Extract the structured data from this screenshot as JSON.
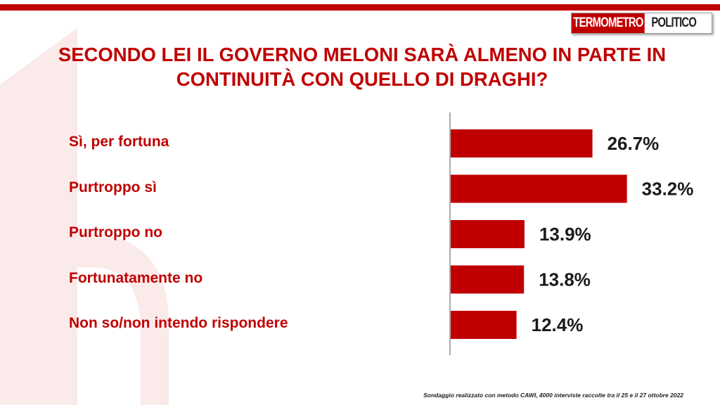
{
  "brand": {
    "logo_part1": "TERMOMETRO",
    "logo_part2": "POLITICO",
    "accent_color": "#c00000"
  },
  "title": "SECONDO LEI IL GOVERNO MELONI SARÀ ALMENO IN PARTE IN CONTINUITÀ CON QUELLO DI DRAGHI?",
  "footnote": "Sondaggio realizzato con metodo CAWI, 4000 interviste raccolte tra il 25 e il 27 ottobre 2022",
  "chart_data": {
    "type": "bar",
    "orientation": "horizontal",
    "categories": [
      "Sì, per fortuna",
      "Purtroppo sì",
      "Purtroppo no",
      "Fortunatamente no",
      "Non so/non intendo rispondere"
    ],
    "values": [
      26.7,
      33.2,
      13.9,
      13.8,
      12.4
    ],
    "value_labels": [
      "26.7%",
      "33.2%",
      "13.9%",
      "13.8%",
      "12.4%"
    ],
    "unit": "%",
    "bar_color": "#c00000",
    "xlim": [
      0,
      40
    ],
    "grid": false,
    "legend": "none"
  }
}
